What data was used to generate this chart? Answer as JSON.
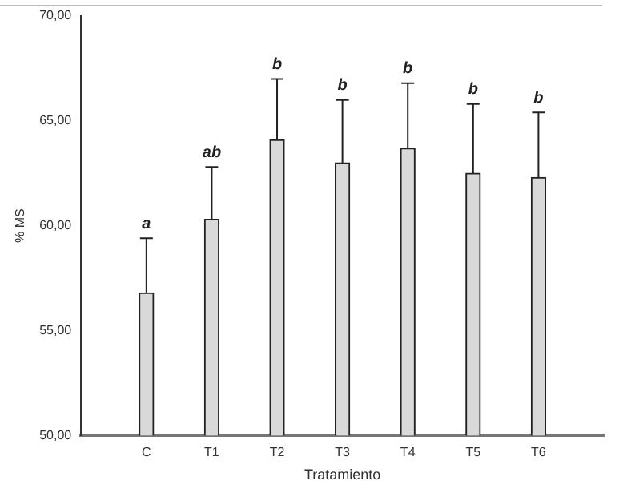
{
  "chart_data": {
    "type": "bar",
    "xlabel": "Tratamiento",
    "ylabel": "% MS",
    "categories": [
      "C",
      "T1",
      "T2",
      "T3",
      "T4",
      "T5",
      "T6"
    ],
    "values": [
      56.8,
      60.3,
      64.1,
      63.0,
      63.7,
      62.5,
      62.3
    ],
    "color": "#d9d9d9",
    "errors": [
      [
        56.8,
        59.4
      ],
      [
        60.3,
        62.8
      ],
      [
        64.1,
        67.0
      ],
      [
        63.0,
        66.0
      ],
      [
        63.7,
        66.8
      ],
      [
        62.5,
        65.8
      ],
      [
        62.3,
        65.4
      ]
    ],
    "ylim": [
      50,
      70
    ],
    "yticks": [
      {
        "value": 50,
        "label": "50,00"
      },
      {
        "value": 55,
        "label": "55,00"
      },
      {
        "value": 60,
        "label": "60,00"
      },
      {
        "value": 65,
        "label": "65,00"
      },
      {
        "value": 70,
        "label": "70,00"
      }
    ],
    "annotations": [
      {
        "text": "a",
        "x": "C",
        "y": 59.4
      },
      {
        "text": "ab",
        "x": "T1",
        "y": 62.8
      },
      {
        "text": "b",
        "x": "T2",
        "y": 67.0
      },
      {
        "text": "b",
        "x": "T3",
        "y": 66.0
      },
      {
        "text": "b",
        "x": "T4",
        "y": 66.8
      },
      {
        "text": "b",
        "x": "T5",
        "y": 65.8
      },
      {
        "text": "b",
        "x": "T6",
        "y": 65.4
      }
    ],
    "grid": false,
    "legend": false
  }
}
